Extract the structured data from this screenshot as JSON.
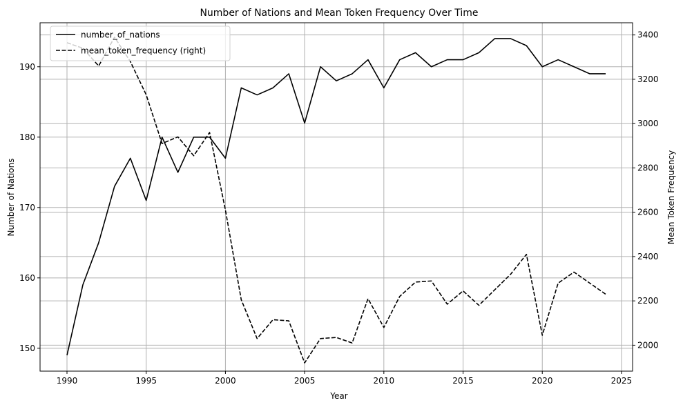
{
  "chart_data": {
    "type": "line",
    "title": "Number of Nations and Mean Token Frequency Over Time",
    "xlabel": "Year",
    "ylabel": "Number of Nations",
    "ylabel_right": "Mean Token Frequency",
    "xlim": [
      1988.3,
      2025.7
    ],
    "ylim": [
      146.75,
      196.25
    ],
    "ylim_right": [
      1883,
      3455
    ],
    "xticks": [
      1990,
      1995,
      2000,
      2005,
      2010,
      2015,
      2020,
      2025
    ],
    "yticks": [
      150,
      160,
      170,
      180,
      190
    ],
    "yticks_right": [
      2000,
      2200,
      2400,
      2600,
      2800,
      3000,
      3200,
      3400
    ],
    "grid": true,
    "legend_position": "top-left",
    "x": [
      1990,
      1991,
      1992,
      1993,
      1994,
      1995,
      1996,
      1997,
      1998,
      1999,
      2000,
      2001,
      2002,
      2003,
      2004,
      2005,
      2006,
      2007,
      2008,
      2009,
      2010,
      2011,
      2012,
      2013,
      2014,
      2015,
      2016,
      2017,
      2018,
      2019,
      2020,
      2021,
      2022,
      2023,
      2024
    ],
    "series": [
      {
        "name": "number_of_nations",
        "axis": "left",
        "style": "solid",
        "color": "#000000",
        "values": [
          149,
          159,
          165,
          173,
          177,
          171,
          180,
          175,
          180,
          180,
          177,
          187,
          186,
          187,
          189,
          182,
          190,
          188,
          189,
          191,
          187,
          191,
          192,
          190,
          191,
          191,
          192,
          194,
          194,
          193,
          190,
          191,
          190,
          189,
          189
        ]
      },
      {
        "name": "mean_token_frequency (right)",
        "axis": "right",
        "style": "dashed",
        "color": "#000000",
        "values": [
          3365,
          3340,
          3260,
          3390,
          3280,
          3130,
          2910,
          2940,
          2855,
          2960,
          2610,
          2205,
          2030,
          2115,
          2110,
          1920,
          2030,
          2035,
          2010,
          2210,
          2080,
          2220,
          2285,
          2290,
          2185,
          2245,
          2180,
          2250,
          2320,
          2410,
          2045,
          2280,
          2330,
          2280,
          2230
        ]
      }
    ]
  }
}
